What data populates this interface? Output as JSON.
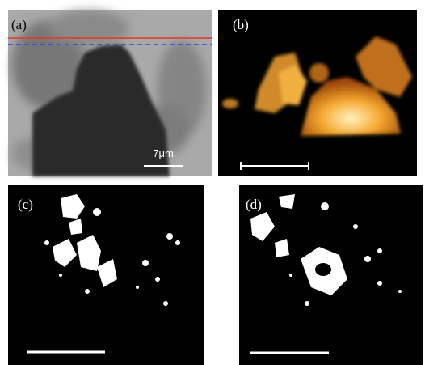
{
  "panels": [
    {
      "label": "(a)",
      "scale_bar_label": "7μm"
    },
    {
      "label": "(b)"
    },
    {
      "label": "(c)"
    },
    {
      "label": "(d)"
    }
  ]
}
